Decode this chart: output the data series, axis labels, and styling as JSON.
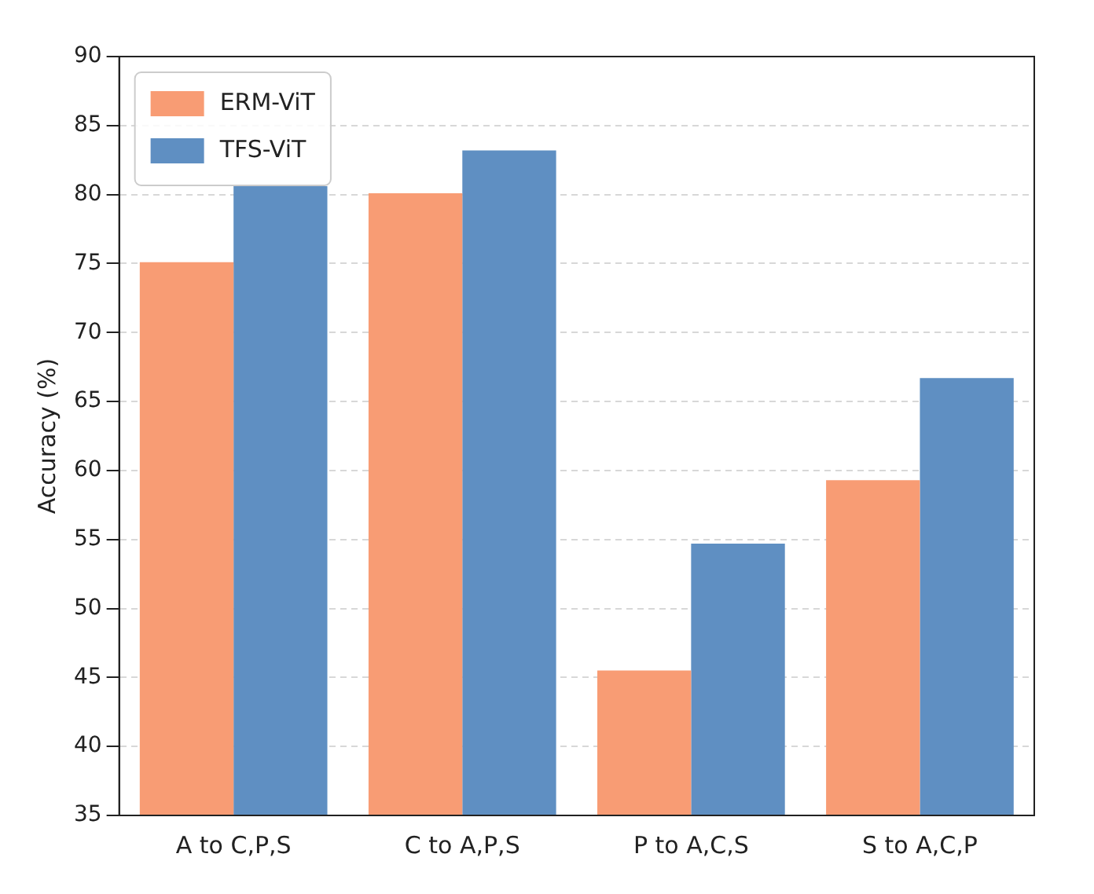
{
  "chart_data": {
    "type": "bar",
    "ylabel": "Accuracy (%)",
    "categories": [
      "A to C,P,S",
      "C to A,P,S",
      "P to A,C,S",
      "S to A,C,P"
    ],
    "series": [
      {
        "name": "ERM-ViT",
        "color": "#f89c74",
        "values": [
          75.1,
          80.1,
          45.5,
          59.3
        ]
      },
      {
        "name": "TFS-ViT",
        "color": "#5f8fc2",
        "values": [
          80.6,
          83.2,
          54.7,
          66.7
        ]
      }
    ],
    "ylim": [
      35,
      90
    ],
    "yticks": [
      35,
      40,
      45,
      50,
      55,
      60,
      65,
      70,
      75,
      80,
      85,
      90
    ],
    "grid": "y",
    "legend": "top left"
  }
}
